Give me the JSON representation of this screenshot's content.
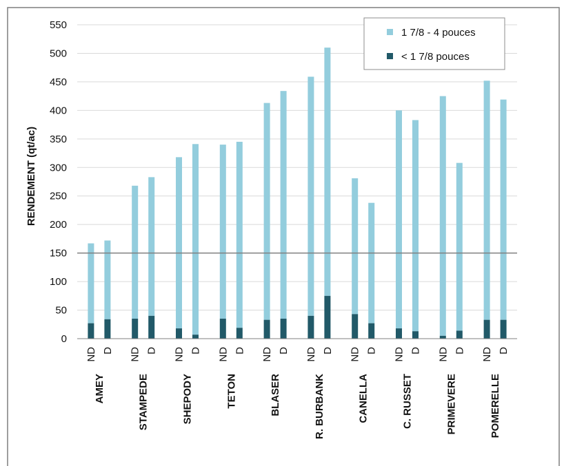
{
  "chart_data": {
    "type": "bar",
    "stacked": true,
    "ylabel": "RENDEMENT (qt/ac)",
    "ylim": [
      0,
      550
    ],
    "yticks": [
      0,
      50,
      100,
      150,
      200,
      250,
      300,
      350,
      400,
      450,
      500,
      550
    ],
    "reference_line": 150,
    "legend_position": "top-right",
    "colors": {
      "light": "#93cddd",
      "dark": "#215968",
      "refline": "#7f7f7f"
    },
    "groups": [
      {
        "name": "AMEY",
        "bars": [
          {
            "label": "ND",
            "small": 27,
            "total": 167
          },
          {
            "label": "D",
            "small": 34,
            "total": 172
          }
        ]
      },
      {
        "name": "STAMPEDE",
        "bars": [
          {
            "label": "ND",
            "small": 35,
            "total": 268
          },
          {
            "label": "D",
            "small": 40,
            "total": 283
          }
        ]
      },
      {
        "name": "SHEPODY",
        "bars": [
          {
            "label": "ND",
            "small": 18,
            "total": 318
          },
          {
            "label": "D",
            "small": 7,
            "total": 341
          }
        ]
      },
      {
        "name": "TETON",
        "bars": [
          {
            "label": "ND",
            "small": 35,
            "total": 340
          },
          {
            "label": "D",
            "small": 19,
            "total": 345
          }
        ]
      },
      {
        "name": "BLASER",
        "bars": [
          {
            "label": "ND",
            "small": 33,
            "total": 413
          },
          {
            "label": "D",
            "small": 35,
            "total": 434
          }
        ]
      },
      {
        "name": "R. BURBANK",
        "bars": [
          {
            "label": "ND",
            "small": 40,
            "total": 459
          },
          {
            "label": "D",
            "small": 75,
            "total": 510
          }
        ]
      },
      {
        "name": "CANELLA",
        "bars": [
          {
            "label": "ND",
            "small": 43,
            "total": 281
          },
          {
            "label": "D",
            "small": 27,
            "total": 238
          }
        ]
      },
      {
        "name": "C. RUSSET",
        "bars": [
          {
            "label": "ND",
            "small": 18,
            "total": 400
          },
          {
            "label": "D",
            "small": 13,
            "total": 383
          }
        ]
      },
      {
        "name": "PRIMEVERE",
        "bars": [
          {
            "label": "ND",
            "small": 5,
            "total": 425
          },
          {
            "label": "D",
            "small": 14,
            "total": 308
          }
        ]
      },
      {
        "name": "POMERELLE",
        "bars": [
          {
            "label": "ND",
            "small": 33,
            "total": 452
          },
          {
            "label": "D",
            "small": 33,
            "total": 419
          }
        ]
      }
    ],
    "legend": [
      {
        "name": "1 7/8 - 4 pouces",
        "color": "#93cddd"
      },
      {
        "name": "< 1 7/8 pouces",
        "color": "#215968"
      }
    ]
  }
}
